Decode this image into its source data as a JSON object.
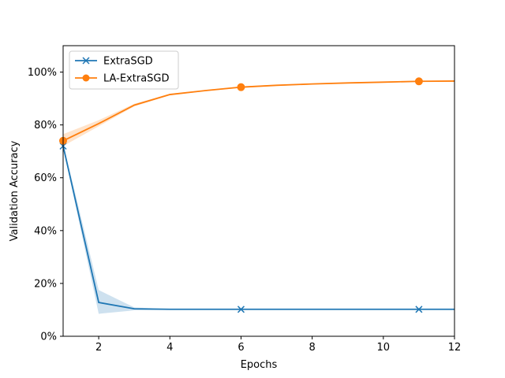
{
  "chart_data": {
    "type": "line",
    "xlabel": "Epochs",
    "ylabel": "Validation Accuracy",
    "xlim": [
      1,
      12
    ],
    "ylim": [
      0,
      110
    ],
    "xticks": [
      2,
      4,
      6,
      8,
      10,
      12
    ],
    "yticks": [
      0,
      20,
      40,
      60,
      80,
      100
    ],
    "ytick_labels": [
      "0%",
      "20%",
      "40%",
      "60%",
      "80%",
      "100%"
    ],
    "grid": false,
    "legend_position": "top-left",
    "series": [
      {
        "name": "ExtraSGD",
        "color": "#1f77b4",
        "marker": "x",
        "x": [
          1,
          2,
          3,
          4,
          5,
          6,
          7,
          8,
          9,
          10,
          11,
          12
        ],
        "y": [
          72,
          12.8,
          10.4,
          10.2,
          10.2,
          10.2,
          10.2,
          10.2,
          10.2,
          10.2,
          10.2,
          10.2
        ],
        "band_lower": [
          71.5,
          8.5,
          9.8,
          10.0,
          10.0,
          10.0,
          10.0,
          10.0,
          10.0,
          10.0,
          10.0,
          10.0
        ],
        "band_upper": [
          73,
          17.5,
          10.9,
          10.3,
          10.3,
          10.3,
          10.3,
          10.3,
          10.3,
          10.3,
          10.3,
          10.3
        ],
        "marker_x": [
          1,
          6,
          11
        ]
      },
      {
        "name": "LA-ExtraSGD",
        "color": "#ff7f0e",
        "marker": "o",
        "x": [
          1,
          2,
          3,
          4,
          5,
          6,
          7,
          8,
          9,
          10,
          11,
          12
        ],
        "y": [
          74,
          80.5,
          87.5,
          91.5,
          93,
          94.3,
          95,
          95.5,
          95.9,
          96.2,
          96.5,
          96.6
        ],
        "band_lower": [
          72,
          79.5,
          87.0,
          91.2,
          92.8,
          94.0,
          94.8,
          95.3,
          95.7,
          96.0,
          96.3,
          96.4
        ],
        "band_upper": [
          76.5,
          81.8,
          88.0,
          91.8,
          93.2,
          94.6,
          95.2,
          95.7,
          96.1,
          96.4,
          96.7,
          96.8
        ],
        "marker_x": [
          1,
          6,
          11
        ]
      }
    ]
  }
}
